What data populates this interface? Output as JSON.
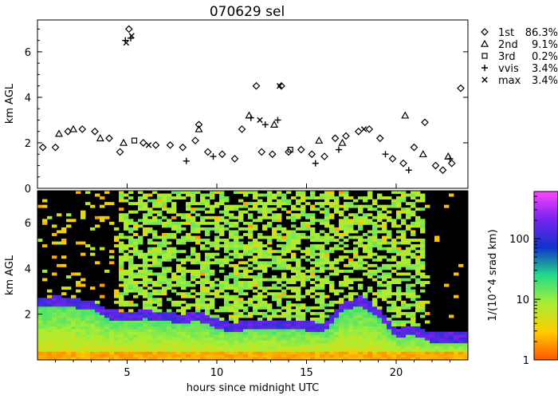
{
  "chart_data": [
    {
      "type": "scatter",
      "title": "070629 sel",
      "ylabel": "km AGL",
      "xlim": [
        0,
        24
      ],
      "ylim": [
        0,
        7.4
      ],
      "y_ticks": [
        0,
        2,
        4,
        6
      ],
      "legend_position": "top-right outside",
      "series": [
        {
          "name": "1st",
          "percent": "86.3%",
          "marker": "diamond",
          "x": [
            0.3,
            1.0,
            1.7,
            2.5,
            3.2,
            4.0,
            4.6,
            5.1,
            5.9,
            6.6,
            7.4,
            8.1,
            8.8,
            9.0,
            9.5,
            10.3,
            11.0,
            11.4,
            12.2,
            12.5,
            13.1,
            13.6,
            14.0,
            14.7,
            15.3,
            16.0,
            16.6,
            17.2,
            17.9,
            18.5,
            19.1,
            19.8,
            20.4,
            21.0,
            21.6,
            22.2,
            22.6,
            23.1,
            23.6
          ],
          "y": [
            1.8,
            1.8,
            2.5,
            2.6,
            2.5,
            2.2,
            1.6,
            7.0,
            2.0,
            1.9,
            1.9,
            1.8,
            2.1,
            2.8,
            1.6,
            1.5,
            1.3,
            2.6,
            4.5,
            1.6,
            1.5,
            4.5,
            1.6,
            1.7,
            1.5,
            1.4,
            2.2,
            2.3,
            2.5,
            2.6,
            2.2,
            1.3,
            1.1,
            1.8,
            2.9,
            1.0,
            0.8,
            1.1,
            4.4
          ]
        },
        {
          "name": "2nd",
          "percent": "9.1%",
          "marker": "triangle",
          "x": [
            1.2,
            2.0,
            3.5,
            4.8,
            9.0,
            11.8,
            13.2,
            15.7,
            17.0,
            20.5,
            21.5,
            22.9
          ],
          "y": [
            2.4,
            2.6,
            2.2,
            2.0,
            2.6,
            3.2,
            2.8,
            2.1,
            2.0,
            3.2,
            1.5,
            1.4
          ]
        },
        {
          "name": "3rd",
          "percent": "0.2%",
          "marker": "square",
          "x": [
            5.4,
            14.1
          ],
          "y": [
            2.1,
            1.7
          ]
        },
        {
          "name": "vvis",
          "percent": "3.4%",
          "marker": "plus",
          "x": [
            4.9,
            5.2,
            8.3,
            9.8,
            11.9,
            12.7,
            13.4,
            15.5,
            16.8,
            19.4,
            20.7,
            23.0
          ],
          "y": [
            6.5,
            6.6,
            1.2,
            1.4,
            3.1,
            2.8,
            3.0,
            1.1,
            1.7,
            1.5,
            0.8,
            1.3
          ]
        },
        {
          "name": "max",
          "percent": "3.4%",
          "marker": "x",
          "x": [
            4.95,
            5.25,
            6.2,
            12.4,
            13.5,
            18.2
          ],
          "y": [
            6.4,
            6.7,
            1.9,
            3.0,
            4.5,
            2.6
          ]
        }
      ]
    },
    {
      "type": "heatmap",
      "ylabel": "km AGL",
      "xlabel": "hours since midnight UTC",
      "xlim": [
        0,
        24
      ],
      "ylim": [
        0,
        7.4
      ],
      "x_ticks": [
        5,
        10,
        15,
        20
      ],
      "y_ticks": [
        2,
        4,
        6
      ],
      "colorbar": {
        "label": "1/(10^4 srad km)",
        "scale": "log",
        "range": [
          1,
          600
        ],
        "ticks": [
          1,
          10,
          100
        ],
        "colors": [
          "#ff5500",
          "#ffcc00",
          "#aaee33",
          "#22dd88",
          "#1133cc",
          "#7722ee",
          "#ff44ff"
        ]
      },
      "cloud_base_km": {
        "x": [
          0.0,
          1.0,
          2.0,
          3.0,
          4.0,
          5.0,
          6.0,
          7.0,
          8.0,
          9.0,
          10.0,
          11.0,
          12.0,
          13.0,
          14.0,
          15.0,
          16.0,
          17.0,
          18.0,
          19.0,
          20.0,
          21.0,
          22.0
        ],
        "y": [
          2.5,
          2.6,
          2.5,
          2.4,
          2.0,
          1.9,
          2.0,
          1.9,
          1.8,
          1.9,
          1.6,
          1.4,
          1.6,
          1.5,
          1.5,
          1.5,
          1.4,
          2.3,
          2.6,
          2.1,
          1.2,
          1.3,
          1.0
        ]
      }
    }
  ]
}
